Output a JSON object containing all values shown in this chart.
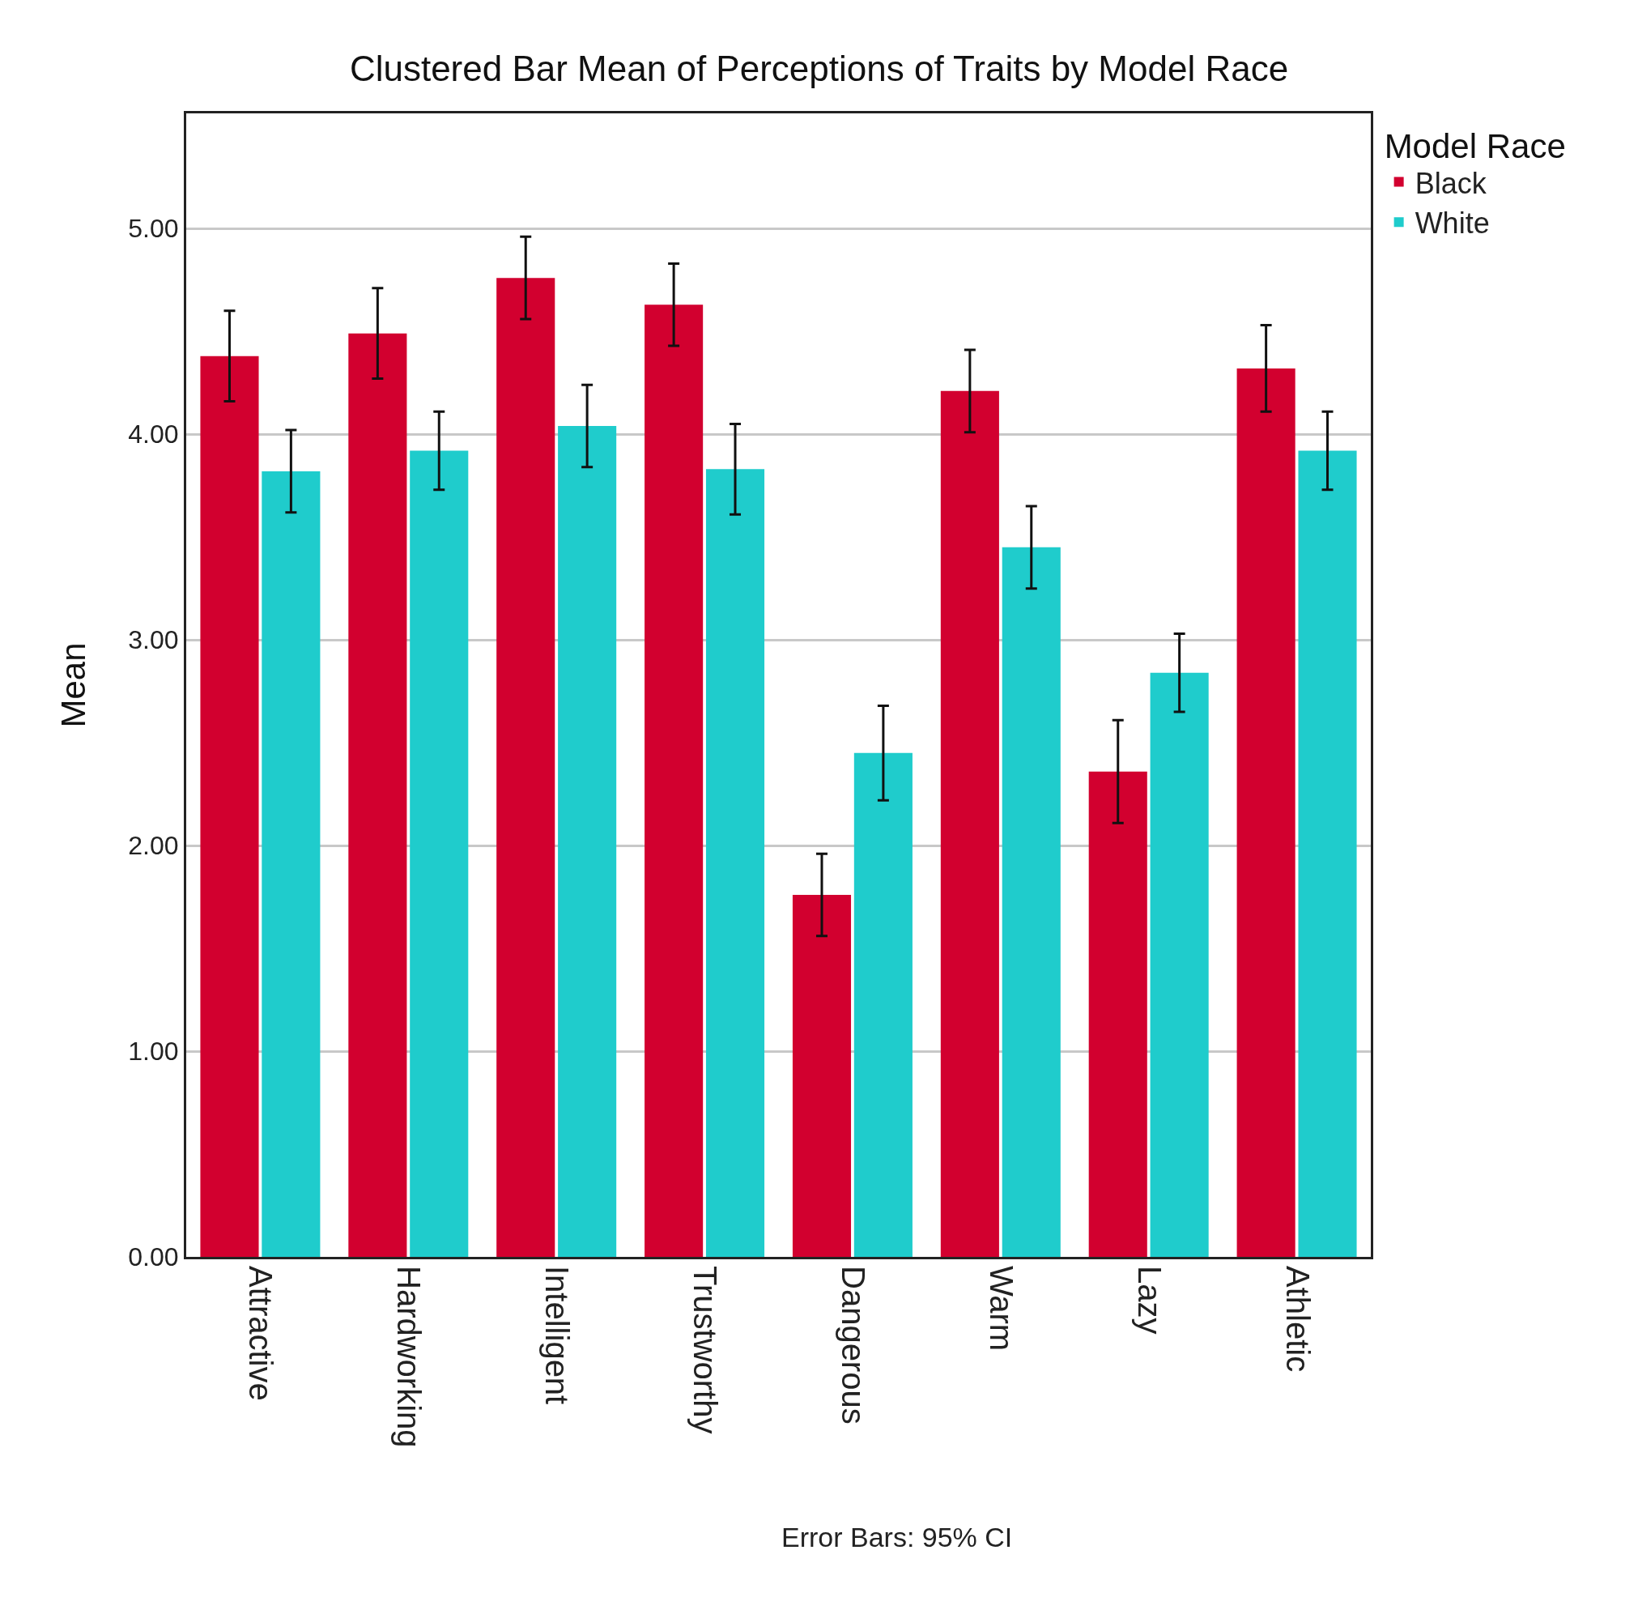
{
  "chart_data": {
    "type": "bar",
    "title": "Clustered Bar Mean of Perceptions of Traits by Model Race",
    "ylabel": "Mean",
    "legend_title": "Model Race",
    "categories": [
      "Attractive",
      "Hardworking",
      "Intelligent",
      "Trustworthy",
      "Dangerous",
      "Warm",
      "Lazy",
      "Athletic"
    ],
    "series": [
      {
        "name": "Black",
        "color": "#d2002f",
        "values": [
          4.38,
          4.49,
          4.76,
          4.63,
          1.76,
          4.21,
          2.36,
          4.32
        ],
        "errors": [
          0.22,
          0.22,
          0.2,
          0.2,
          0.2,
          0.2,
          0.25,
          0.21
        ]
      },
      {
        "name": "White",
        "color": "#1fcccc",
        "values": [
          3.82,
          3.92,
          4.04,
          3.83,
          2.45,
          3.45,
          2.84,
          3.92
        ],
        "errors": [
          0.2,
          0.19,
          0.2,
          0.22,
          0.23,
          0.2,
          0.19,
          0.19
        ]
      }
    ],
    "ylim": [
      0,
      5.56
    ],
    "yticks": [
      {
        "value": 0,
        "label": "0.00"
      },
      {
        "value": 1,
        "label": "1.00"
      },
      {
        "value": 2,
        "label": "2.00"
      },
      {
        "value": 3,
        "label": "3.00"
      },
      {
        "value": 4,
        "label": "4.00"
      },
      {
        "value": 5,
        "label": "5.00"
      }
    ],
    "grid": "y",
    "legend": "top right",
    "annotations": [
      "Error Bars: 95% CI"
    ]
  }
}
